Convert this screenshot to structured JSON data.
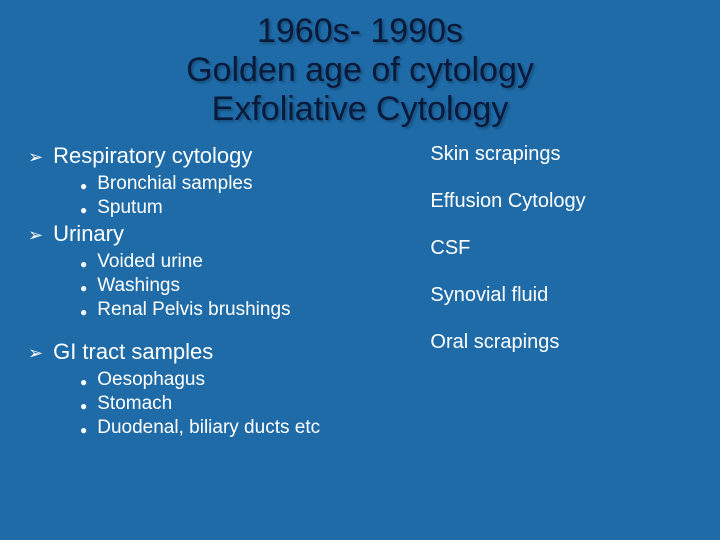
{
  "title": {
    "line1": "1960s- 1990s",
    "line2": "Golden age of cytology",
    "line3": "Exfoliative Cytology",
    "color": "#0a1a3a",
    "fontsize": 34
  },
  "left": {
    "sections": [
      {
        "heading": "Respiratory cytology",
        "items": [
          "Bronchial samples",
          "Sputum"
        ]
      },
      {
        "heading": "Urinary",
        "items": [
          "Voided urine",
          "Washings",
          "Renal Pelvis brushings"
        ]
      },
      {
        "heading": "GI tract samples",
        "items": [
          "Oesophagus",
          "Stomach",
          "Duodenal, biliary ducts etc"
        ]
      }
    ]
  },
  "right": {
    "items": [
      "Skin scrapings",
      "Effusion Cytology",
      "CSF",
      "Synovial fluid",
      "Oral scrapings"
    ]
  },
  "styling": {
    "background_color": "#1e6ba8",
    "text_color": "#ffffff",
    "l1_fontsize": 22,
    "l2_fontsize": 19,
    "right_fontsize": 20,
    "bullet_l1": "➢",
    "bullet_l2": "●"
  }
}
